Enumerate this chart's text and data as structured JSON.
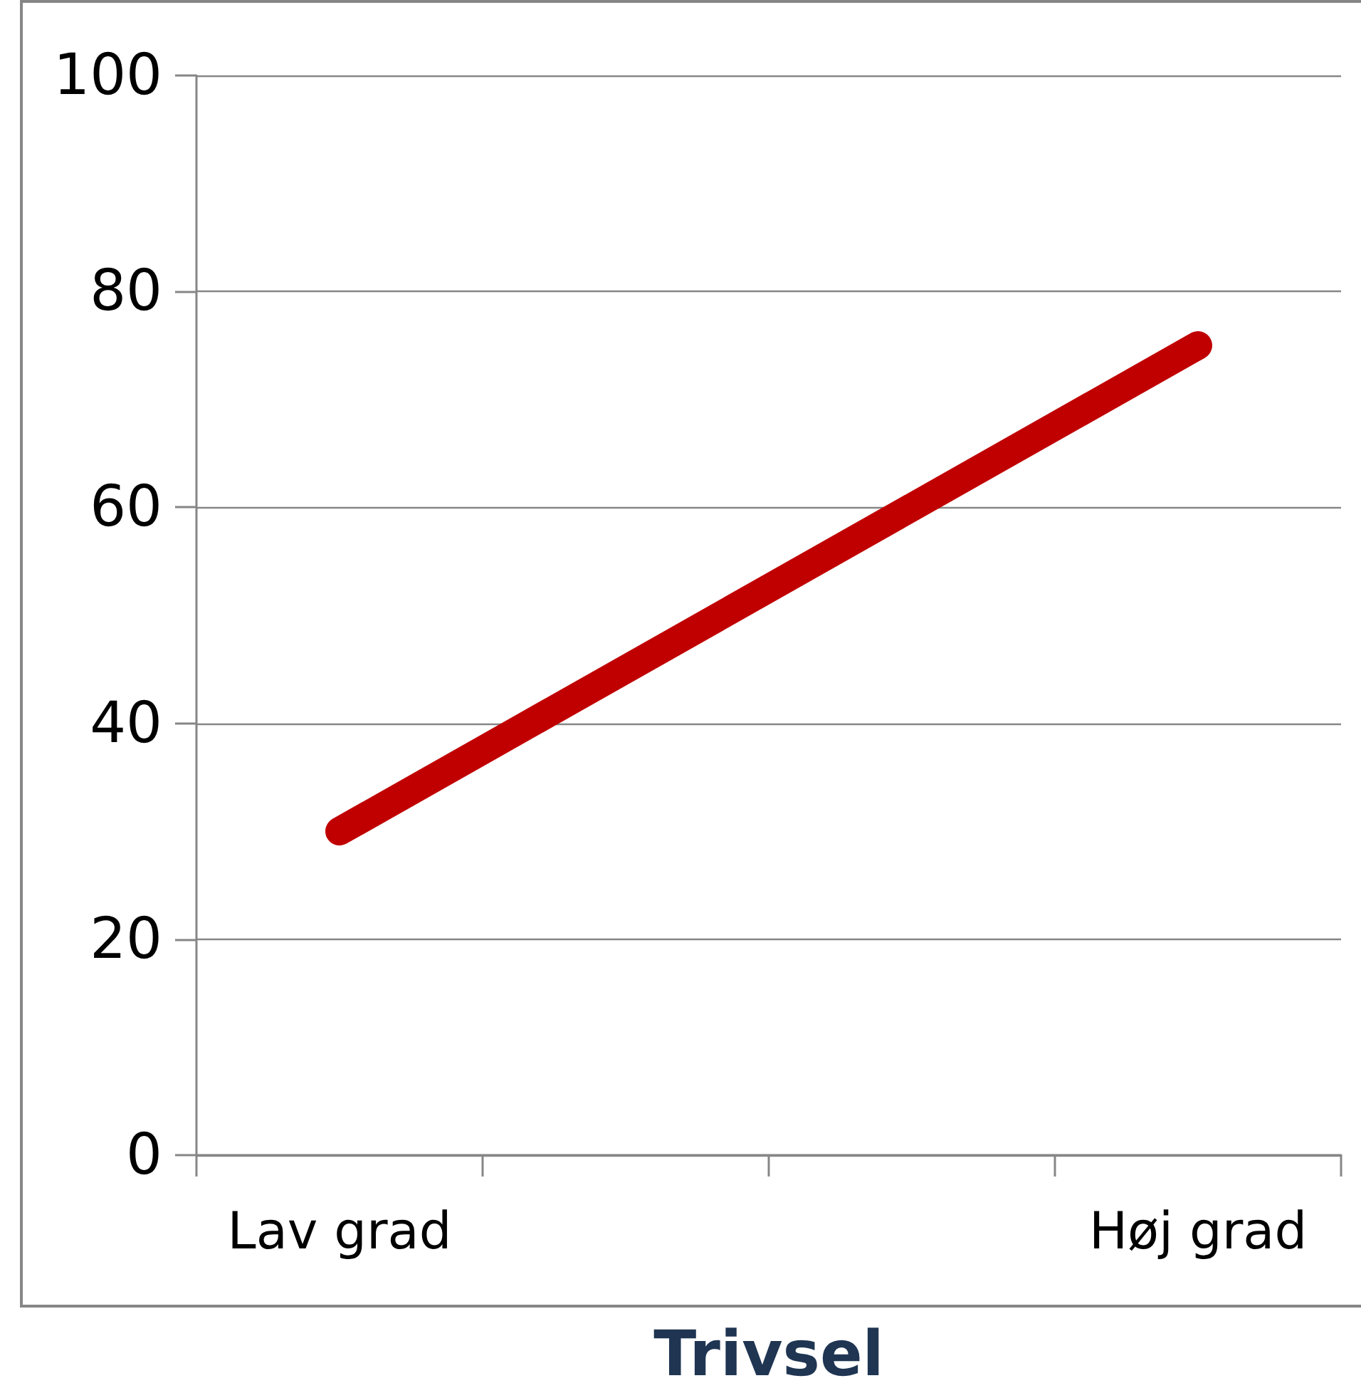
{
  "chart_data": {
    "type": "line",
    "xlabel": "Trivsel",
    "categories": [
      "Lav grad",
      null,
      null,
      "Høj grad"
    ],
    "series": [
      {
        "color": "#c00000",
        "values": [
          30,
          null,
          null,
          75
        ]
      }
    ],
    "ylim": [
      0,
      100
    ],
    "yticks": [
      0,
      20,
      40,
      60,
      80,
      100
    ],
    "grid": "y",
    "line_style": "solid"
  }
}
